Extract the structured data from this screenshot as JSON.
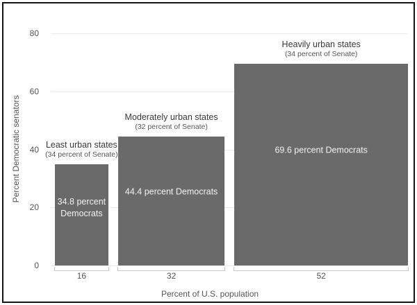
{
  "chart_data": {
    "type": "bar",
    "variant": "variable-width-bar",
    "title": "",
    "xlabel": "Percent of U.S. population",
    "ylabel": "Percent Democratic senators",
    "ylim": [
      0,
      80
    ],
    "yticks": [
      0,
      20,
      40,
      60,
      80
    ],
    "grid": "horizontal",
    "legend": "none",
    "x_total_percent": 100,
    "bars": [
      {
        "group": "Least urban states",
        "senate_share": "(34 percent of Senate)",
        "population_percent": 16,
        "population_tick": "16",
        "democrat_percent": 34.8,
        "value_label": "34.8 percent\nDemocrats"
      },
      {
        "group": "Moderately urban states",
        "senate_share": "(32 percent of Senate)",
        "population_percent": 32,
        "population_tick": "32",
        "democrat_percent": 44.4,
        "value_label": "44.4 percent Democrats"
      },
      {
        "group": "Heavily urban states",
        "senate_share": "(34 percent of Senate)",
        "population_percent": 52,
        "population_tick": "52",
        "democrat_percent": 69.6,
        "value_label": "69.6 percent Democrats"
      }
    ]
  },
  "colors": {
    "background": "#ffffff",
    "bar_fill": "#6a6a6a",
    "bar_text": "#f2f2f2",
    "grid_line": "#eaeaea",
    "axis_text": "#555555",
    "group_title_text": "#383838",
    "bracket": "#c9c9c9",
    "frame_border": "#141414"
  }
}
